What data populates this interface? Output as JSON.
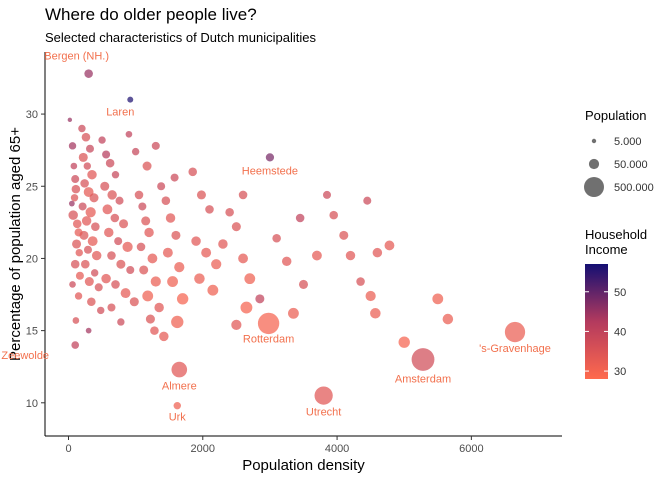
{
  "title": "Where do older people live?",
  "subtitle": "Selected characteristics of Dutch municipalities",
  "chart_data": {
    "type": "scatter",
    "title": "Where do older people live?",
    "subtitle": "Selected characteristics of Dutch municipalities",
    "xlabel": "Population density",
    "ylabel": "Percentage of population aged 65+",
    "xlim": [
      -350,
      7350
    ],
    "ylim": [
      7.7,
      34.3
    ],
    "x_ticks": [
      0,
      2000,
      4000,
      6000
    ],
    "y_ticks": [
      10,
      15,
      20,
      25,
      30
    ],
    "grid": false,
    "legend_position": "right",
    "size_legend": {
      "title": "Population",
      "entries": [
        {
          "label": "5.000",
          "value": 5000
        },
        {
          "label": "50.000",
          "value": 50000
        },
        {
          "label": "500.000",
          "value": 500000
        }
      ]
    },
    "color_legend": {
      "title": [
        "Household",
        "Income"
      ],
      "ticks": [
        30,
        40,
        50
      ],
      "range": [
        28,
        57
      ],
      "low_color": "#ff6a4d",
      "mid_color": "#b33a5e",
      "high_color": "#140f73"
    },
    "annotation_color": "#f2704d",
    "labeled_points": [
      {
        "label": "Bergen (NH.)",
        "x": 300,
        "y": 32.8,
        "pop": 30000,
        "income": 45
      },
      {
        "label": "Laren",
        "x": 920,
        "y": 31.0,
        "pop": 11000,
        "income": 56
      },
      {
        "label": "Heemstede",
        "x": 3000,
        "y": 27.0,
        "pop": 27000,
        "income": 48
      },
      {
        "label": "Zeewolde",
        "x": 100,
        "y": 14.0,
        "pop": 22000,
        "income": 40
      },
      {
        "label": "Rotterdam",
        "x": 2980,
        "y": 15.5,
        "pop": 650000,
        "income": 30
      },
      {
        "label": "Almere",
        "x": 1650,
        "y": 12.3,
        "pop": 200000,
        "income": 34
      },
      {
        "label": "Urk",
        "x": 1620,
        "y": 9.8,
        "pop": 20000,
        "income": 31
      },
      {
        "label": "Utrecht",
        "x": 3800,
        "y": 10.5,
        "pop": 350000,
        "income": 34
      },
      {
        "label": "Amsterdam",
        "x": 5280,
        "y": 13.0,
        "pop": 850000,
        "income": 37
      },
      {
        "label": "'s-Gravenhage",
        "x": 6650,
        "y": 14.9,
        "pop": 530000,
        "income": 32
      }
    ],
    "points": [
      {
        "x": 20,
        "y": 29.6,
        "pop": 5000,
        "income": 45
      },
      {
        "x": 60,
        "y": 27.8,
        "pop": 20000,
        "income": 44
      },
      {
        "x": 80,
        "y": 26.4,
        "pop": 15000,
        "income": 40
      },
      {
        "x": 100,
        "y": 25.5,
        "pop": 25000,
        "income": 38
      },
      {
        "x": 110,
        "y": 24.8,
        "pop": 30000,
        "income": 36
      },
      {
        "x": 90,
        "y": 24.2,
        "pop": 20000,
        "income": 35
      },
      {
        "x": 50,
        "y": 23.8,
        "pop": 10000,
        "income": 45
      },
      {
        "x": 70,
        "y": 23.0,
        "pop": 40000,
        "income": 36
      },
      {
        "x": 130,
        "y": 22.4,
        "pop": 30000,
        "income": 34
      },
      {
        "x": 150,
        "y": 21.8,
        "pop": 25000,
        "income": 33
      },
      {
        "x": 120,
        "y": 21.0,
        "pop": 35000,
        "income": 35
      },
      {
        "x": 160,
        "y": 20.4,
        "pop": 20000,
        "income": 34
      },
      {
        "x": 100,
        "y": 19.6,
        "pop": 30000,
        "income": 36
      },
      {
        "x": 170,
        "y": 18.8,
        "pop": 25000,
        "income": 33
      },
      {
        "x": 60,
        "y": 18.2,
        "pop": 15000,
        "income": 38
      },
      {
        "x": 150,
        "y": 17.4,
        "pop": 20000,
        "income": 34
      },
      {
        "x": 110,
        "y": 15.7,
        "pop": 15000,
        "income": 36
      },
      {
        "x": 300,
        "y": 15.0,
        "pop": 10000,
        "income": 44
      },
      {
        "x": 200,
        "y": 29.0,
        "pop": 20000,
        "income": 38
      },
      {
        "x": 260,
        "y": 28.4,
        "pop": 30000,
        "income": 36
      },
      {
        "x": 320,
        "y": 27.6,
        "pop": 25000,
        "income": 39
      },
      {
        "x": 220,
        "y": 27.0,
        "pop": 35000,
        "income": 35
      },
      {
        "x": 280,
        "y": 26.4,
        "pop": 20000,
        "income": 37
      },
      {
        "x": 350,
        "y": 25.8,
        "pop": 40000,
        "income": 34
      },
      {
        "x": 240,
        "y": 25.2,
        "pop": 30000,
        "income": 36
      },
      {
        "x": 300,
        "y": 24.6,
        "pop": 45000,
        "income": 33
      },
      {
        "x": 380,
        "y": 24.2,
        "pop": 35000,
        "income": 35
      },
      {
        "x": 210,
        "y": 23.6,
        "pop": 25000,
        "income": 38
      },
      {
        "x": 330,
        "y": 23.2,
        "pop": 50000,
        "income": 33
      },
      {
        "x": 270,
        "y": 22.6,
        "pop": 40000,
        "income": 34
      },
      {
        "x": 400,
        "y": 22.2,
        "pop": 30000,
        "income": 36
      },
      {
        "x": 230,
        "y": 21.6,
        "pop": 35000,
        "income": 35
      },
      {
        "x": 360,
        "y": 21.2,
        "pop": 45000,
        "income": 33
      },
      {
        "x": 290,
        "y": 20.6,
        "pop": 25000,
        "income": 36
      },
      {
        "x": 420,
        "y": 20.2,
        "pop": 40000,
        "income": 34
      },
      {
        "x": 250,
        "y": 19.6,
        "pop": 30000,
        "income": 35
      },
      {
        "x": 390,
        "y": 19.0,
        "pop": 20000,
        "income": 37
      },
      {
        "x": 310,
        "y": 18.4,
        "pop": 35000,
        "income": 34
      },
      {
        "x": 450,
        "y": 18.0,
        "pop": 25000,
        "income": 36
      },
      {
        "x": 340,
        "y": 17.0,
        "pop": 30000,
        "income": 35
      },
      {
        "x": 480,
        "y": 16.4,
        "pop": 20000,
        "income": 37
      },
      {
        "x": 500,
        "y": 28.2,
        "pop": 20000,
        "income": 40
      },
      {
        "x": 560,
        "y": 27.2,
        "pop": 25000,
        "income": 42
      },
      {
        "x": 620,
        "y": 26.6,
        "pop": 30000,
        "income": 38
      },
      {
        "x": 700,
        "y": 25.8,
        "pop": 20000,
        "income": 39
      },
      {
        "x": 540,
        "y": 25.0,
        "pop": 35000,
        "income": 36
      },
      {
        "x": 650,
        "y": 24.4,
        "pop": 40000,
        "income": 35
      },
      {
        "x": 760,
        "y": 24.0,
        "pop": 25000,
        "income": 37
      },
      {
        "x": 580,
        "y": 23.4,
        "pop": 45000,
        "income": 34
      },
      {
        "x": 690,
        "y": 22.8,
        "pop": 30000,
        "income": 36
      },
      {
        "x": 820,
        "y": 22.4,
        "pop": 35000,
        "income": 35
      },
      {
        "x": 600,
        "y": 21.8,
        "pop": 40000,
        "income": 34
      },
      {
        "x": 740,
        "y": 21.2,
        "pop": 25000,
        "income": 37
      },
      {
        "x": 880,
        "y": 20.8,
        "pop": 50000,
        "income": 33
      },
      {
        "x": 640,
        "y": 20.2,
        "pop": 30000,
        "income": 36
      },
      {
        "x": 780,
        "y": 19.6,
        "pop": 35000,
        "income": 35
      },
      {
        "x": 920,
        "y": 19.2,
        "pop": 25000,
        "income": 37
      },
      {
        "x": 560,
        "y": 18.6,
        "pop": 40000,
        "income": 34
      },
      {
        "x": 700,
        "y": 18.2,
        "pop": 30000,
        "income": 36
      },
      {
        "x": 850,
        "y": 17.6,
        "pop": 45000,
        "income": 33
      },
      {
        "x": 980,
        "y": 17.0,
        "pop": 35000,
        "income": 35
      },
      {
        "x": 640,
        "y": 16.6,
        "pop": 25000,
        "income": 36
      },
      {
        "x": 780,
        "y": 15.6,
        "pop": 20000,
        "income": 38
      },
      {
        "x": 1050,
        "y": 24.4,
        "pop": 30000,
        "income": 36
      },
      {
        "x": 1100,
        "y": 23.6,
        "pop": 25000,
        "income": 38
      },
      {
        "x": 1150,
        "y": 22.6,
        "pop": 35000,
        "income": 35
      },
      {
        "x": 1200,
        "y": 21.8,
        "pop": 40000,
        "income": 34
      },
      {
        "x": 1080,
        "y": 20.8,
        "pop": 30000,
        "income": 36
      },
      {
        "x": 1250,
        "y": 20.0,
        "pop": 45000,
        "income": 33
      },
      {
        "x": 1120,
        "y": 19.2,
        "pop": 35000,
        "income": 35
      },
      {
        "x": 1300,
        "y": 18.4,
        "pop": 50000,
        "income": 32
      },
      {
        "x": 1180,
        "y": 17.4,
        "pop": 60000,
        "income": 31
      },
      {
        "x": 1350,
        "y": 16.6,
        "pop": 40000,
        "income": 34
      },
      {
        "x": 1220,
        "y": 15.8,
        "pop": 35000,
        "income": 35
      },
      {
        "x": 1280,
        "y": 15.0,
        "pop": 30000,
        "income": 34
      },
      {
        "x": 1380,
        "y": 25.0,
        "pop": 25000,
        "income": 38
      },
      {
        "x": 1450,
        "y": 24.0,
        "pop": 30000,
        "income": 36
      },
      {
        "x": 1520,
        "y": 22.8,
        "pop": 40000,
        "income": 34
      },
      {
        "x": 1600,
        "y": 21.6,
        "pop": 35000,
        "income": 35
      },
      {
        "x": 1480,
        "y": 20.4,
        "pop": 45000,
        "income": 33
      },
      {
        "x": 1650,
        "y": 19.4,
        "pop": 50000,
        "income": 32
      },
      {
        "x": 1550,
        "y": 18.4,
        "pop": 60000,
        "income": 31
      },
      {
        "x": 1700,
        "y": 17.2,
        "pop": 70000,
        "income": 30
      },
      {
        "x": 1620,
        "y": 15.6,
        "pop": 90000,
        "income": 31
      },
      {
        "x": 1420,
        "y": 14.6,
        "pop": 40000,
        "income": 33
      },
      {
        "x": 1580,
        "y": 25.6,
        "pop": 25000,
        "income": 38
      },
      {
        "x": 1850,
        "y": 26.0,
        "pop": 30000,
        "income": 36
      },
      {
        "x": 1980,
        "y": 24.4,
        "pop": 35000,
        "income": 35
      },
      {
        "x": 2100,
        "y": 23.4,
        "pop": 30000,
        "income": 36
      },
      {
        "x": 1900,
        "y": 21.2,
        "pop": 40000,
        "income": 34
      },
      {
        "x": 2050,
        "y": 20.4,
        "pop": 45000,
        "income": 33
      },
      {
        "x": 2200,
        "y": 19.6,
        "pop": 50000,
        "income": 32
      },
      {
        "x": 1950,
        "y": 18.6,
        "pop": 55000,
        "income": 32
      },
      {
        "x": 2150,
        "y": 17.8,
        "pop": 60000,
        "income": 31
      },
      {
        "x": 2300,
        "y": 21.0,
        "pop": 40000,
        "income": 34
      },
      {
        "x": 2400,
        "y": 23.2,
        "pop": 30000,
        "income": 36
      },
      {
        "x": 2500,
        "y": 22.2,
        "pop": 35000,
        "income": 35
      },
      {
        "x": 2600,
        "y": 20.0,
        "pop": 45000,
        "income": 33
      },
      {
        "x": 2700,
        "y": 18.6,
        "pop": 60000,
        "income": 31
      },
      {
        "x": 2650,
        "y": 16.6,
        "pop": 80000,
        "income": 30
      },
      {
        "x": 2500,
        "y": 15.4,
        "pop": 50000,
        "income": 34
      },
      {
        "x": 2850,
        "y": 17.2,
        "pop": 35000,
        "income": 40
      },
      {
        "x": 3100,
        "y": 21.4,
        "pop": 30000,
        "income": 36
      },
      {
        "x": 3250,
        "y": 19.8,
        "pop": 40000,
        "income": 34
      },
      {
        "x": 3350,
        "y": 16.2,
        "pop": 60000,
        "income": 32
      },
      {
        "x": 3450,
        "y": 22.8,
        "pop": 30000,
        "income": 40
      },
      {
        "x": 3500,
        "y": 18.2,
        "pop": 35000,
        "income": 36
      },
      {
        "x": 3700,
        "y": 20.2,
        "pop": 45000,
        "income": 33
      },
      {
        "x": 3850,
        "y": 24.4,
        "pop": 25000,
        "income": 38
      },
      {
        "x": 3950,
        "y": 23.0,
        "pop": 30000,
        "income": 36
      },
      {
        "x": 4100,
        "y": 21.6,
        "pop": 35000,
        "income": 35
      },
      {
        "x": 4200,
        "y": 20.2,
        "pop": 40000,
        "income": 34
      },
      {
        "x": 4350,
        "y": 18.4,
        "pop": 30000,
        "income": 36
      },
      {
        "x": 4450,
        "y": 24.0,
        "pop": 25000,
        "income": 38
      },
      {
        "x": 4600,
        "y": 20.4,
        "pop": 40000,
        "income": 34
      },
      {
        "x": 4780,
        "y": 20.9,
        "pop": 45000,
        "income": 33
      },
      {
        "x": 4500,
        "y": 17.4,
        "pop": 50000,
        "income": 32
      },
      {
        "x": 4570,
        "y": 16.2,
        "pop": 55000,
        "income": 32
      },
      {
        "x": 5500,
        "y": 17.2,
        "pop": 60000,
        "income": 31
      },
      {
        "x": 5650,
        "y": 15.8,
        "pop": 55000,
        "income": 32
      },
      {
        "x": 5000,
        "y": 14.2,
        "pop": 70000,
        "income": 30
      },
      {
        "x": 2600,
        "y": 24.4,
        "pop": 30000,
        "income": 36
      },
      {
        "x": 1000,
        "y": 27.4,
        "pop": 20000,
        "income": 39
      },
      {
        "x": 1300,
        "y": 27.8,
        "pop": 25000,
        "income": 38
      },
      {
        "x": 900,
        "y": 28.6,
        "pop": 15000,
        "income": 40
      },
      {
        "x": 1170,
        "y": 26.4,
        "pop": 35000,
        "income": 35
      }
    ]
  }
}
